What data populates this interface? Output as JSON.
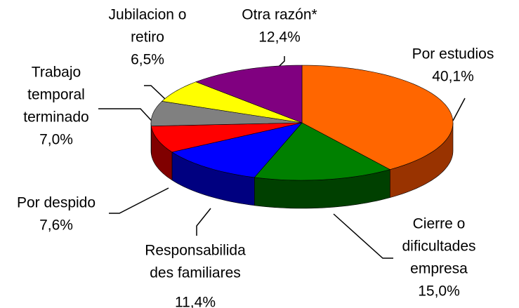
{
  "chart_data": {
    "type": "pie3d",
    "categories": [
      [
        "Por estudios"
      ],
      [
        "Cierre o",
        "dificultades",
        "empresa"
      ],
      [
        "Responsabilida",
        "des familiares"
      ],
      [
        "Por despido"
      ],
      [
        "Trabajo",
        "temporal",
        "terminado"
      ],
      [
        "Jubilacion o",
        "retiro"
      ],
      [
        "Otra razón*"
      ]
    ],
    "values": [
      40.1,
      15.0,
      11.4,
      7.6,
      7.0,
      6.5,
      12.4
    ],
    "value_labels": [
      "40,1%",
      "15,0%",
      "11,4%",
      "7,6%",
      "7,0%",
      "6,5%",
      "12,4%"
    ],
    "colors": [
      "#ff6600",
      "#008000",
      "#0000ff",
      "#ff0000",
      "#808080",
      "#ffff00",
      "#800080"
    ],
    "side_colors": [
      "#993300",
      "#004000",
      "#000080",
      "#800000",
      "#404040",
      "#808000",
      "#400040"
    ]
  }
}
